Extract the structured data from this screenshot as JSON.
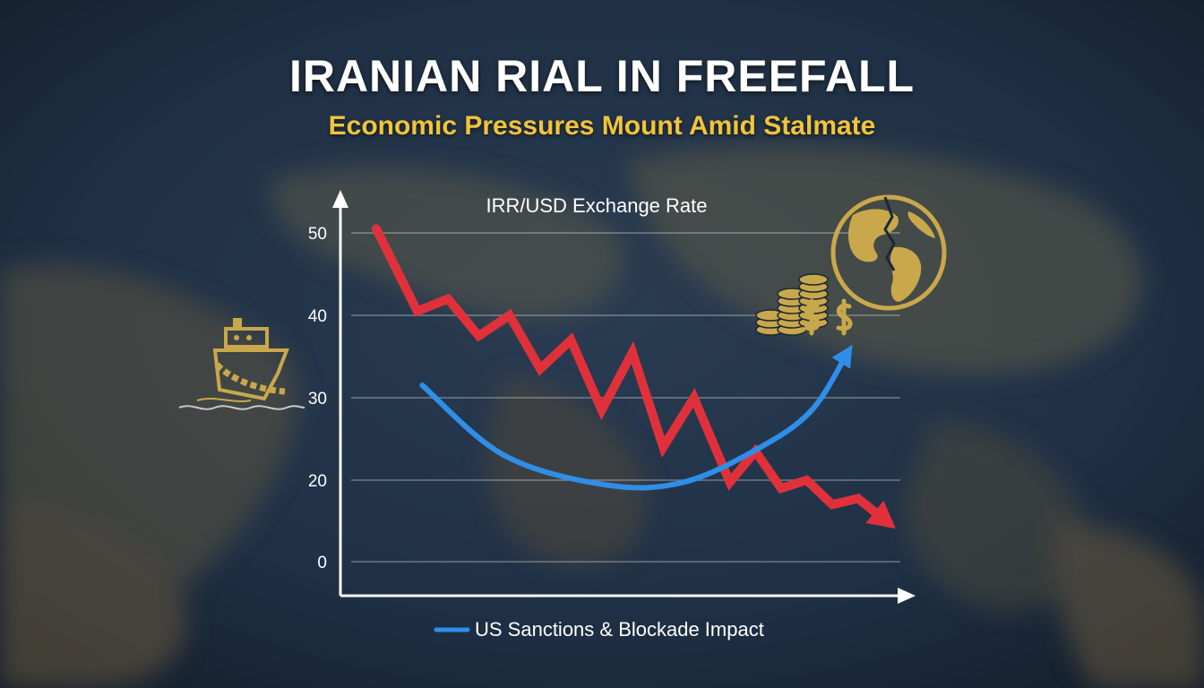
{
  "headline": "IRANIAN RIAL IN FREEFALL",
  "subheadline": "Economic Pressures Mount Amid Stalmate",
  "icons": [
    "chained-ship-icon",
    "coin-stack-dollar-icon",
    "cracked-globe-icon"
  ],
  "colors": {
    "headline": "#ffffff",
    "subheadline": "#f2c43a",
    "rial_series": "#e0313a",
    "sanctions_series": "#2f8ee8",
    "icon_gold": "#c9a84c"
  },
  "chart_data": {
    "type": "line",
    "title": "IRR/USD Exchange Rate",
    "xlabel": "",
    "ylabel": "",
    "y_ticks": [
      "0",
      "20",
      "30",
      "40",
      "50"
    ],
    "grid": true,
    "legend": "bottom",
    "series": [
      {
        "name": "",
        "color": "#e0313a",
        "ends_with_arrow": true,
        "points": [
          [
            0.0,
            50.5
          ],
          [
            0.08,
            40.5
          ],
          [
            0.14,
            42.0
          ],
          [
            0.2,
            37.5
          ],
          [
            0.26,
            40.0
          ],
          [
            0.32,
            33.5
          ],
          [
            0.38,
            37.0
          ],
          [
            0.44,
            28.5
          ],
          [
            0.5,
            35.5
          ],
          [
            0.56,
            24.0
          ],
          [
            0.62,
            30.0
          ],
          [
            0.69,
            19.5
          ],
          [
            0.74,
            23.5
          ],
          [
            0.79,
            18.0
          ],
          [
            0.84,
            20.0
          ],
          [
            0.89,
            14.0
          ],
          [
            0.94,
            15.5
          ],
          [
            1.0,
            9.5
          ]
        ]
      },
      {
        "name": "US Sanctions & Blockade Impact",
        "color": "#2f8ee8",
        "ends_with_arrow": true,
        "points": [
          [
            0.09,
            31.5
          ],
          [
            0.25,
            23.0
          ],
          [
            0.45,
            18.8
          ],
          [
            0.6,
            19.5
          ],
          [
            0.75,
            24.0
          ],
          [
            0.85,
            28.5
          ],
          [
            0.92,
            35.5
          ]
        ]
      }
    ]
  }
}
